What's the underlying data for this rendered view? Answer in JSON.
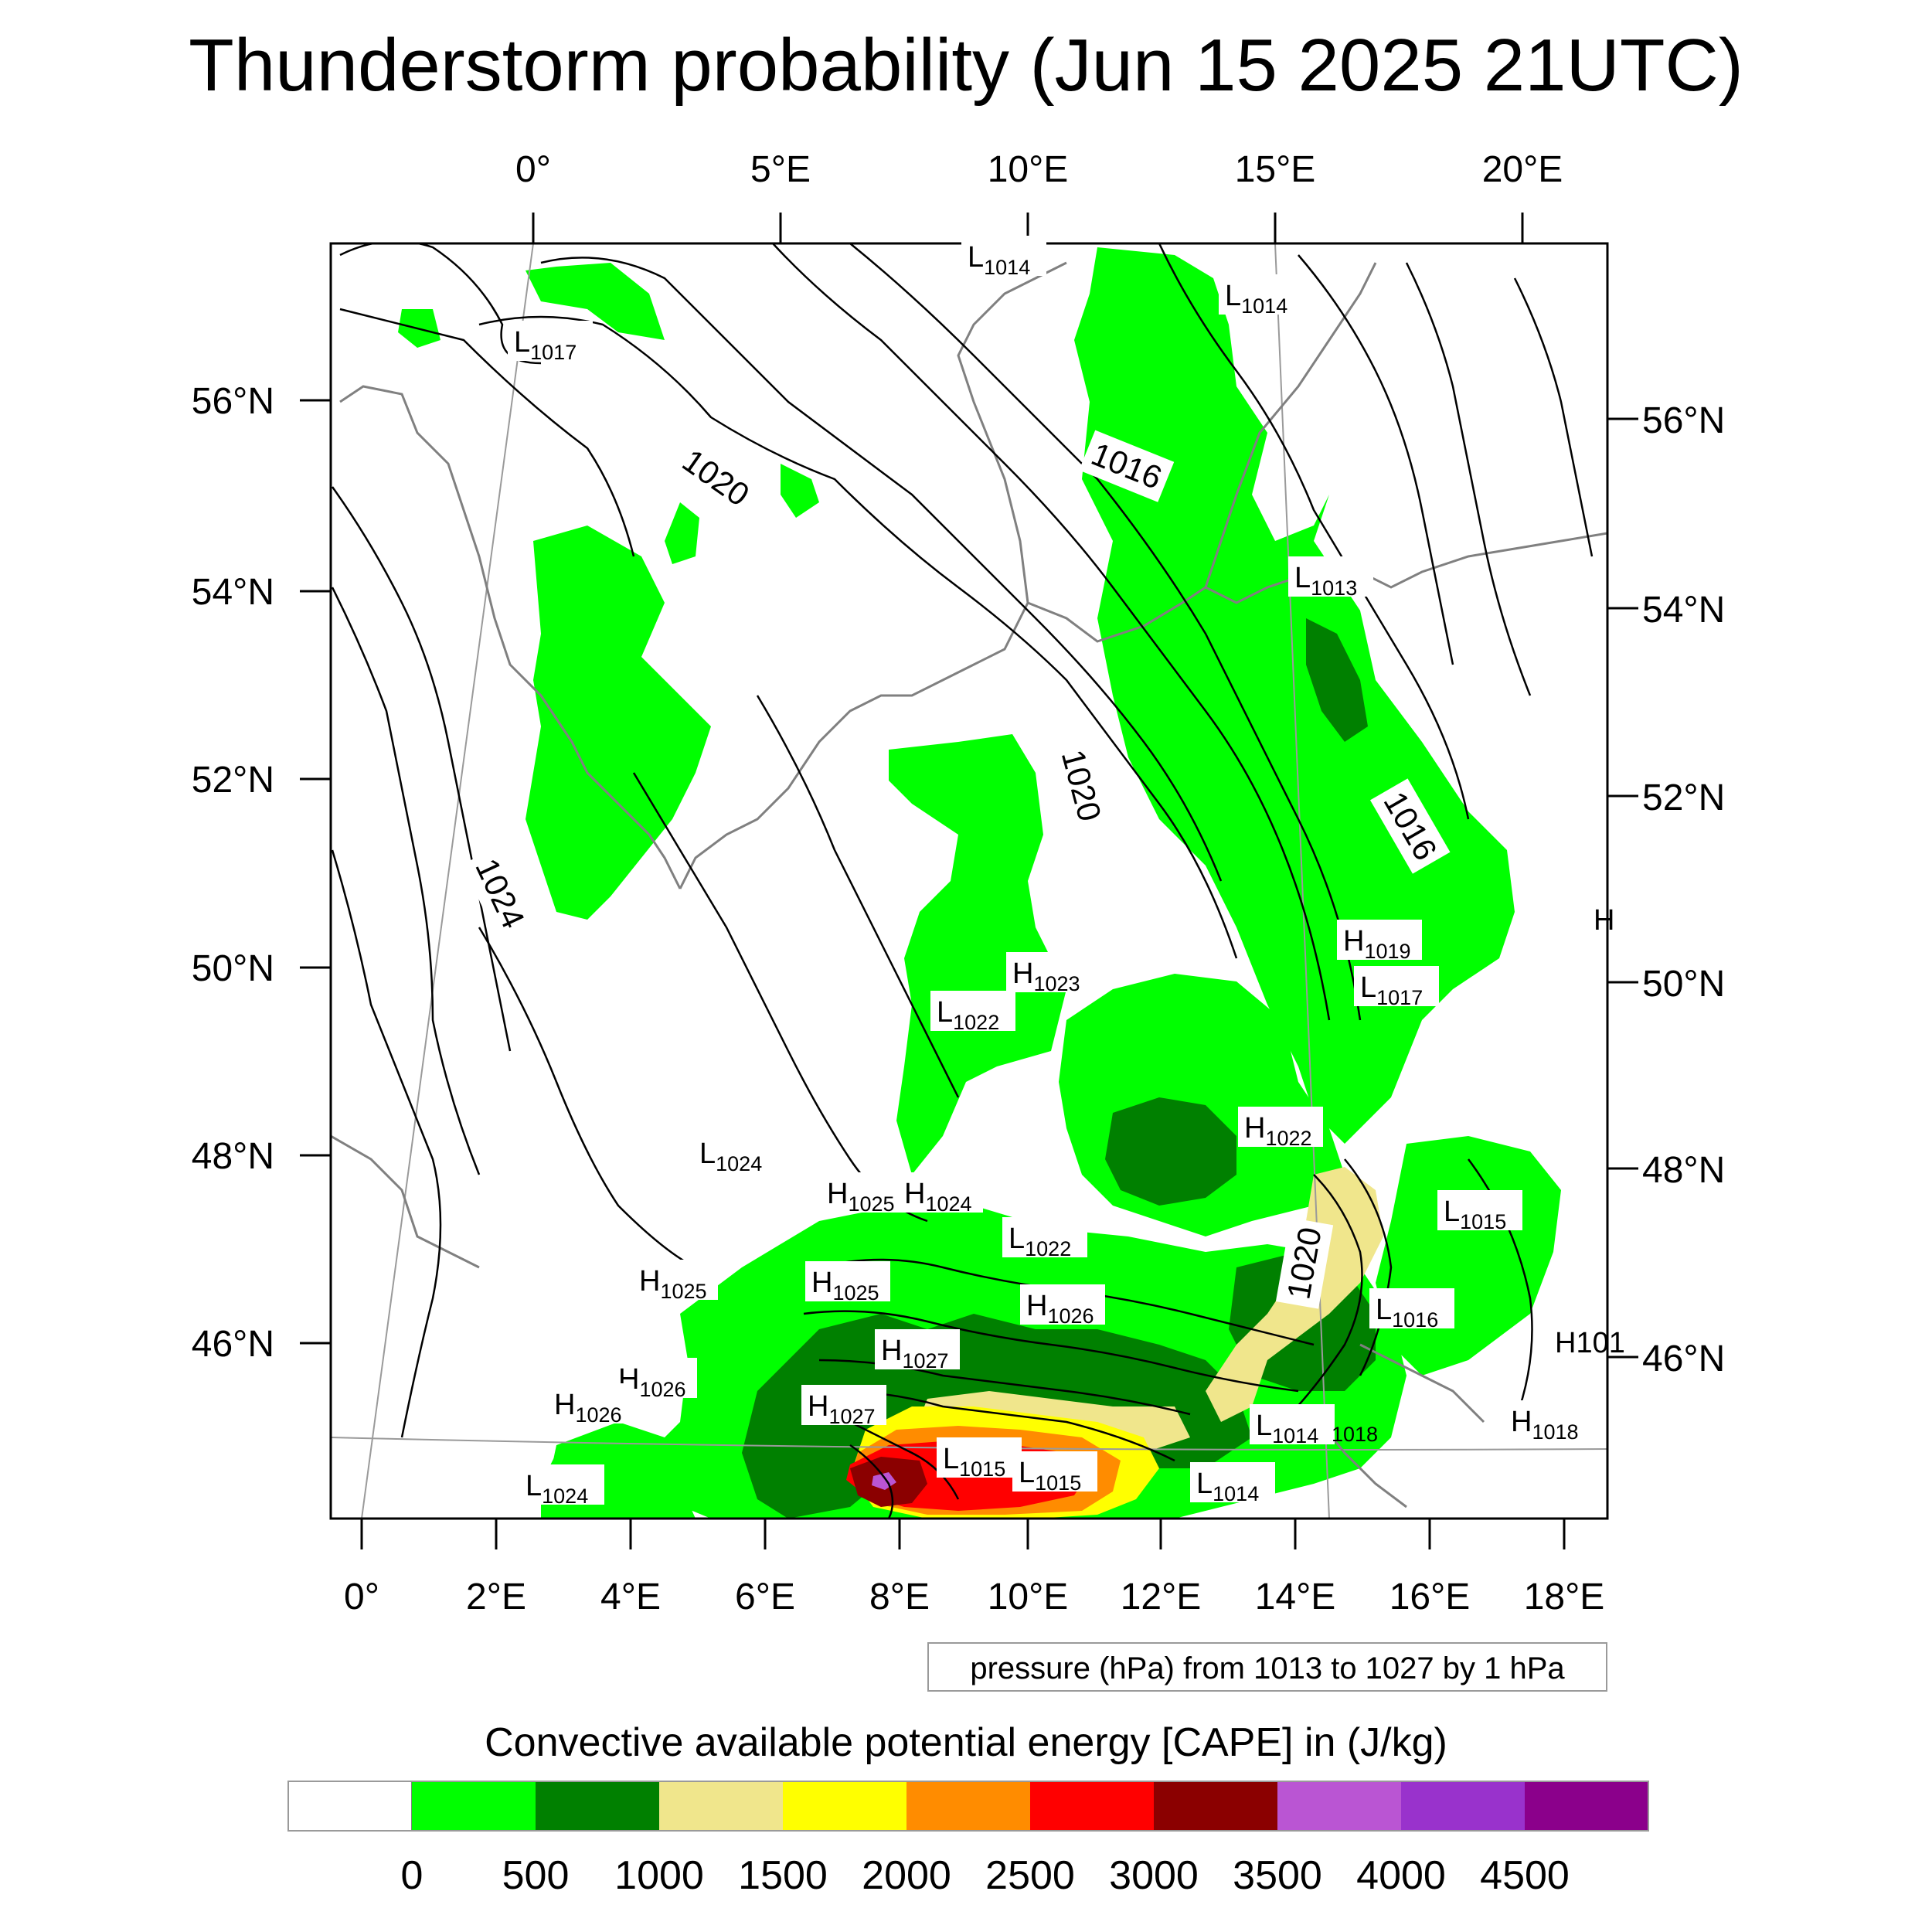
{
  "title": "Thunderstorm probability (Jun 15 2025 21UTC)",
  "map": {
    "top_lon_labels": [
      "0°",
      "5°E",
      "10°E",
      "15°E",
      "20°E"
    ],
    "bottom_lon_labels": [
      "0°",
      "2°E",
      "4°E",
      "6°E",
      "8°E",
      "10°E",
      "12°E",
      "14°E",
      "16°E",
      "18°E"
    ],
    "left_lat_labels": [
      "56°N",
      "54°N",
      "52°N",
      "50°N",
      "48°N",
      "46°N"
    ],
    "right_lat_labels": [
      "56°N",
      "54°N",
      "52°N",
      "50°N",
      "48°N",
      "46°N"
    ],
    "isobar_line_labels": [
      "1020",
      "1016",
      "1020",
      "1016",
      "1024",
      "1020"
    ],
    "pressure_centers": [
      {
        "type": "L",
        "value": "1014"
      },
      {
        "type": "L",
        "value": "1014"
      },
      {
        "type": "L",
        "value": "1017"
      },
      {
        "type": "L",
        "value": "1013"
      },
      {
        "type": "H",
        "value": "1019"
      },
      {
        "type": "L",
        "value": "1017"
      },
      {
        "type": "H",
        "value": "1023"
      },
      {
        "type": "L",
        "value": "1022"
      },
      {
        "type": "H",
        "value": "1022"
      },
      {
        "type": "L",
        "value": "1024"
      },
      {
        "type": "H",
        "value": "1025"
      },
      {
        "type": "H",
        "value": "1024"
      },
      {
        "type": "L",
        "value": "1015"
      },
      {
        "type": "L",
        "value": "1022"
      },
      {
        "type": "H",
        "value": "1025"
      },
      {
        "type": "H",
        "value": "1025"
      },
      {
        "type": "H",
        "value": "1026"
      },
      {
        "type": "L",
        "value": "1016"
      },
      {
        "type": "H",
        "value": "1027"
      },
      {
        "type": "H",
        "value": "1026"
      },
      {
        "type": "H",
        "value": "1026"
      },
      {
        "type": "H",
        "value": "1027"
      },
      {
        "type": "L",
        "value": "1014"
      },
      {
        "type": "H",
        "value": "1018"
      },
      {
        "type": "L",
        "value": "1015"
      },
      {
        "type": "L",
        "value": "1015"
      },
      {
        "type": "L",
        "value": "1014"
      },
      {
        "type": "L",
        "value": "1024"
      }
    ],
    "extra_labels": [
      "1018",
      "H",
      "H101"
    ],
    "contour_note": "pressure (hPa) from 1013 to 1027 by 1 hPa"
  },
  "colorbar": {
    "title": "Convective available potential energy [CAPE] in (J/kg)",
    "colors": [
      "#ffffff",
      "#00ff00",
      "#008000",
      "#f0e68c",
      "#ffff00",
      "#ff8c00",
      "#ff0000",
      "#8b0000",
      "#ba55d3",
      "#9932cc",
      "#8b008b"
    ],
    "tick_labels": [
      "0",
      "500",
      "1000",
      "1500",
      "2000",
      "2500",
      "3000",
      "3500",
      "4000",
      "4500"
    ]
  }
}
